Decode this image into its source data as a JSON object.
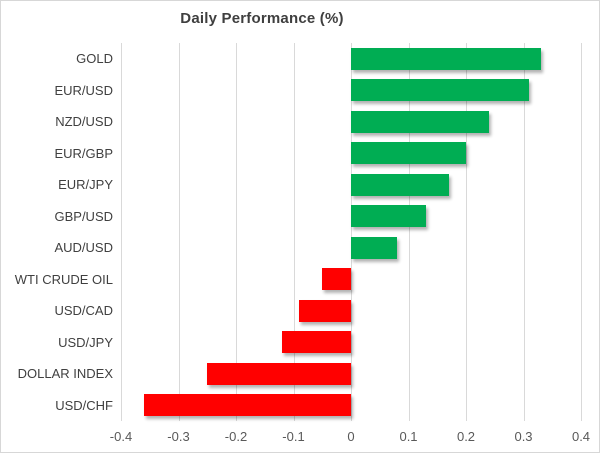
{
  "chart_data": {
    "type": "bar",
    "orientation": "horizontal",
    "title": "Daily Performance (%)",
    "categories": [
      "GOLD",
      "EUR/USD",
      "NZD/USD",
      "EUR/GBP",
      "EUR/JPY",
      "GBP/USD",
      "AUD/USD",
      "WTI CRUDE OIL",
      "USD/CAD",
      "USD/JPY",
      "DOLLAR INDEX",
      "USD/CHF"
    ],
    "values": [
      0.33,
      0.31,
      0.24,
      0.2,
      0.17,
      0.13,
      0.08,
      -0.05,
      -0.09,
      -0.12,
      -0.25,
      -0.36
    ],
    "xlabel": "",
    "ylabel": "",
    "xlim": [
      -0.4,
      0.4
    ],
    "x_ticks": [
      -0.4,
      -0.3,
      -0.2,
      -0.1,
      0,
      0.1,
      0.2,
      0.3,
      0.4
    ],
    "x_tick_labels": [
      "-0.4",
      "-0.3",
      "-0.2",
      "-0.1",
      "0",
      "0.1",
      "0.2",
      "0.3",
      "0.4"
    ],
    "grid": true,
    "legend": false,
    "positive_color": "#00AD53",
    "negative_color": "#FF0000",
    "gridline_color": "#D9D9D9",
    "title_color": "#3F3F3F",
    "category_label_color": "#404040",
    "tick_label_color": "#595959"
  }
}
